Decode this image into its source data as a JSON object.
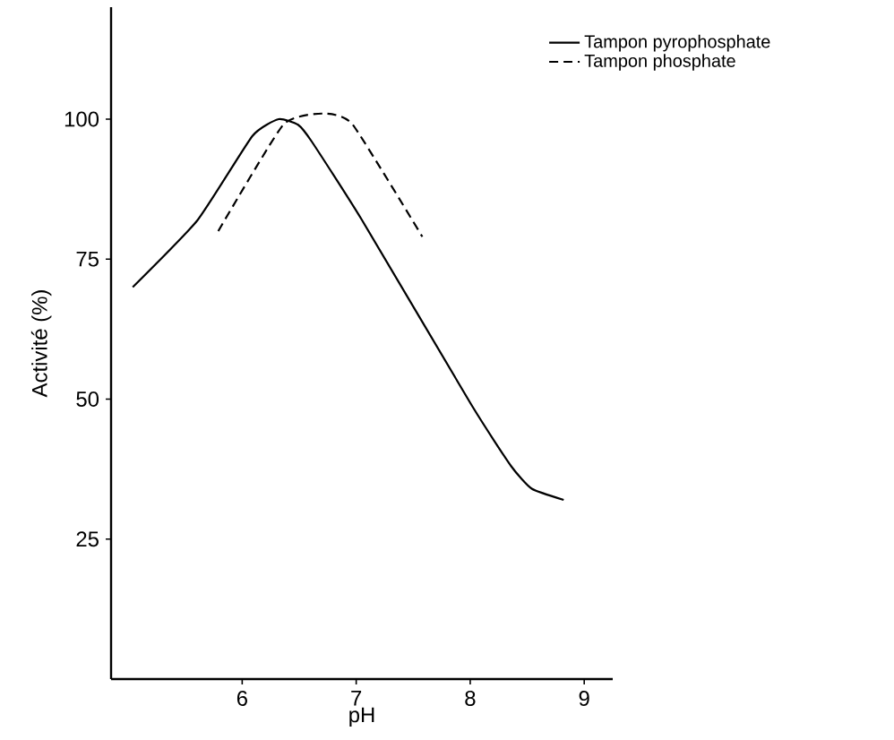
{
  "chart_data": {
    "type": "line",
    "xlabel": "pH",
    "ylabel": "Activité  (%)",
    "legend": "top right",
    "grid": false,
    "marker": "none",
    "xlim": [
      4.85,
      9.25
    ],
    "ylim": [
      0,
      120
    ],
    "xticks": [
      6,
      7,
      8,
      9
    ],
    "yticks": [
      25,
      50,
      75,
      100
    ],
    "series": [
      {
        "name": "Tampon pyrophosphate",
        "color": "#000000",
        "line_style": "solid",
        "x": [
          5.04,
          5.61,
          6.09,
          6.32,
          6.49,
          6.61,
          7.05,
          8.01,
          8.36,
          8.54,
          8.82
        ],
        "values": [
          70,
          82,
          97,
          100,
          99,
          96,
          82,
          49,
          38,
          34,
          32
        ]
      },
      {
        "name": "Tampon phosphate",
        "color": "#000000",
        "line_style": "dashed",
        "x": [
          5.79,
          6.36,
          6.71,
          6.97,
          7.58
        ],
        "values": [
          80,
          99,
          101,
          99,
          79
        ]
      }
    ]
  }
}
